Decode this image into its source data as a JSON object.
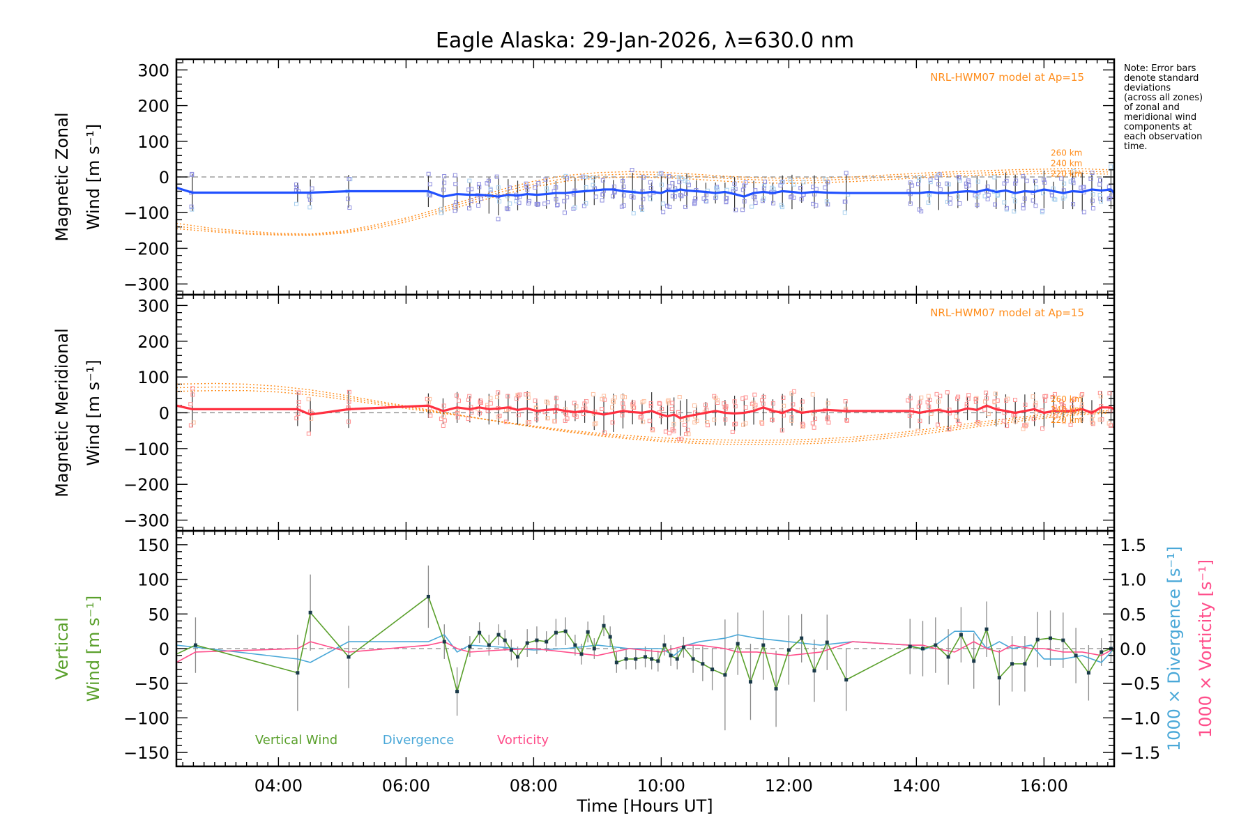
{
  "title": "Eagle Alaska: 29-Jan-2026, λ=630.0 nm",
  "note_lines": [
    "Note: Error bars",
    "denote standard",
    "deviations",
    "(across all zones)",
    "of zonal and",
    "meridional wind",
    "components at",
    "each observation",
    "time."
  ],
  "colors": {
    "zonal": "#2050ff",
    "meridional": "#ff3040",
    "vertical": "#5aa02c",
    "divergence": "#4aa8d8",
    "vorticity": "#ff4d8a",
    "model": "#ff8c1a",
    "zone_zonal": "#9090e0",
    "zone_merid": "#ff9090"
  },
  "chart_data": [
    {
      "id": "zonal",
      "type": "line",
      "ylabel_lines": [
        "Magnetic Zonal",
        "Wind [m s⁻¹]"
      ],
      "ylim": [
        -330,
        330
      ],
      "yticks": [
        300,
        200,
        100,
        0,
        -100,
        -200,
        -300
      ],
      "ytick_labels": [
        "300",
        "200",
        "100",
        "0",
        "−100",
        "−200",
        "−300"
      ],
      "xlim": [
        2.4,
        17.1
      ],
      "model_label": "NRL-HWM07 model at Ap=15",
      "altitude_labels": [
        "260 km",
        "240 km",
        "220 km"
      ],
      "model_curves": {
        "x": [
          2.4,
          3.0,
          3.5,
          4.0,
          4.5,
          5.0,
          5.5,
          6.0,
          6.5,
          7.0,
          7.5,
          8.0,
          8.5,
          9.0,
          9.5,
          10.0,
          10.5,
          11.0,
          11.5,
          12.0,
          12.5,
          13.0,
          13.5,
          14.0,
          14.5,
          15.0,
          15.5,
          16.0,
          16.5,
          17.0
        ],
        "series": [
          {
            "name": "260 km",
            "values": [
              -130,
              -145,
              -152,
              -158,
              -160,
              -152,
              -135,
              -115,
              -90,
              -62,
              -35,
              -12,
              4,
              12,
              15,
              13,
              8,
              2,
              -2,
              -4,
              -3,
              0,
              5,
              10,
              14,
              17,
              20,
              22,
              24,
              20
            ]
          },
          {
            "name": "240 km",
            "values": [
              -138,
              -150,
              -157,
              -161,
              -162,
              -155,
              -140,
              -120,
              -96,
              -68,
              -42,
              -20,
              -4,
              5,
              8,
              6,
              2,
              -4,
              -8,
              -10,
              -9,
              -6,
              -1,
              4,
              8,
              11,
              14,
              16,
              17,
              14
            ]
          },
          {
            "name": "220 km",
            "values": [
              -145,
              -154,
              -160,
              -163,
              -164,
              -158,
              -145,
              -126,
              -102,
              -75,
              -50,
              -28,
              -12,
              -3,
              0,
              -2,
              -6,
              -12,
              -16,
              -18,
              -16,
              -13,
              -8,
              -3,
              2,
              5,
              8,
              9,
              10,
              8
            ]
          }
        ]
      },
      "series": [
        {
          "name": "Zonal Wind",
          "x": [
            2.4,
            2.65,
            4.3,
            4.5,
            5.1,
            6.35,
            6.58,
            6.8,
            7.0,
            7.15,
            7.3,
            7.45,
            7.6,
            7.75,
            7.9,
            8.05,
            8.2,
            8.35,
            8.5,
            8.65,
            8.8,
            8.95,
            9.1,
            9.25,
            9.4,
            9.55,
            9.7,
            9.85,
            10.0,
            10.1,
            10.2,
            10.3,
            10.4,
            10.55,
            10.7,
            10.85,
            11.0,
            11.15,
            11.3,
            11.45,
            11.6,
            11.75,
            11.9,
            12.05,
            12.2,
            12.4,
            12.6,
            12.9,
            13.9,
            14.05,
            14.2,
            14.35,
            14.5,
            14.65,
            14.8,
            14.95,
            15.1,
            15.25,
            15.4,
            15.55,
            15.7,
            15.85,
            16.0,
            16.15,
            16.3,
            16.45,
            16.6,
            16.75,
            16.9,
            17.05,
            17.1
          ],
          "y": [
            -30,
            -44,
            -44,
            -44,
            -40,
            -40,
            -55,
            -48,
            -50,
            -50,
            -52,
            -55,
            -50,
            -52,
            -48,
            -50,
            -48,
            -45,
            -45,
            -42,
            -40,
            -38,
            -35,
            -35,
            -40,
            -42,
            -45,
            -42,
            -45,
            -38,
            -40,
            -35,
            -38,
            -40,
            -42,
            -45,
            -42,
            -48,
            -55,
            -45,
            -42,
            -45,
            -40,
            -42,
            -45,
            -42,
            -44,
            -45,
            -45,
            -45,
            -42,
            -45,
            -45,
            -42,
            -40,
            -42,
            -35,
            -42,
            -38,
            -45,
            -40,
            -42,
            -35,
            -40,
            -45,
            -40,
            -42,
            -35,
            -38,
            -35,
            -45
          ]
        }
      ]
    },
    {
      "id": "meridional",
      "type": "line",
      "ylabel_lines": [
        "Magnetic Meridional",
        "Wind [m s⁻¹]"
      ],
      "ylim": [
        -330,
        330
      ],
      "yticks": [
        300,
        200,
        100,
        0,
        -100,
        -200,
        -300
      ],
      "ytick_labels": [
        "300",
        "200",
        "100",
        "0",
        "−100",
        "−200",
        "−300"
      ],
      "xlim": [
        2.4,
        17.1
      ],
      "model_label": "NRL-HWM07 model at Ap=15",
      "altitude_labels": [
        "260 km",
        "240 km",
        "220 km"
      ],
      "model_curves": {
        "x": [
          2.4,
          3.0,
          3.5,
          4.0,
          4.5,
          5.0,
          5.5,
          6.0,
          6.5,
          7.0,
          7.5,
          8.0,
          8.5,
          9.0,
          9.5,
          10.0,
          10.5,
          11.0,
          11.5,
          12.0,
          12.5,
          13.0,
          13.5,
          14.0,
          14.5,
          15.0,
          15.5,
          16.0,
          16.5,
          17.0
        ],
        "series": [
          {
            "name": "260 km",
            "values": [
              60,
              62,
              62,
              58,
              50,
              38,
              25,
              12,
              0,
              -12,
              -25,
              -37,
              -48,
              -57,
              -64,
              -70,
              -74,
              -76,
              -77,
              -76,
              -73,
              -68,
              -60,
              -50,
              -38,
              -26,
              -15,
              -5,
              2,
              6
            ]
          },
          {
            "name": "240 km",
            "values": [
              70,
              72,
              71,
              66,
              57,
              44,
              30,
              16,
              2,
              -12,
              -26,
              -39,
              -51,
              -61,
              -69,
              -76,
              -80,
              -82,
              -83,
              -82,
              -79,
              -74,
              -66,
              -56,
              -44,
              -32,
              -20,
              -10,
              -2,
              2
            ]
          },
          {
            "name": "220 km",
            "values": [
              80,
              82,
              80,
              74,
              64,
              50,
              34,
              19,
              4,
              -11,
              -26,
              -40,
              -53,
              -64,
              -73,
              -80,
              -85,
              -88,
              -89,
              -88,
              -85,
              -80,
              -72,
              -62,
              -50,
              -38,
              -26,
              -15,
              -6,
              -1
            ]
          }
        ]
      },
      "series": [
        {
          "name": "Meridional Wind",
          "x": [
            2.4,
            2.65,
            4.3,
            4.5,
            5.1,
            6.35,
            6.58,
            6.8,
            7.0,
            7.15,
            7.3,
            7.45,
            7.6,
            7.75,
            7.9,
            8.05,
            8.2,
            8.35,
            8.5,
            8.65,
            8.8,
            8.95,
            9.1,
            9.25,
            9.4,
            9.55,
            9.7,
            9.85,
            10.0,
            10.1,
            10.2,
            10.3,
            10.4,
            10.55,
            10.7,
            10.85,
            11.0,
            11.15,
            11.3,
            11.45,
            11.6,
            11.75,
            11.9,
            12.05,
            12.2,
            12.4,
            12.6,
            12.9,
            13.9,
            14.05,
            14.2,
            14.35,
            14.5,
            14.65,
            14.8,
            14.95,
            15.1,
            15.25,
            15.4,
            15.55,
            15.7,
            15.85,
            16.0,
            16.15,
            16.3,
            16.45,
            16.6,
            16.75,
            16.9,
            17.05,
            17.1
          ],
          "y": [
            20,
            10,
            10,
            -5,
            10,
            20,
            5,
            15,
            10,
            15,
            10,
            12,
            15,
            8,
            12,
            5,
            8,
            10,
            5,
            2,
            5,
            0,
            -5,
            0,
            5,
            2,
            0,
            5,
            -5,
            -10,
            -5,
            -15,
            -10,
            -5,
            0,
            5,
            0,
            -2,
            0,
            5,
            15,
            5,
            0,
            10,
            0,
            5,
            8,
            5,
            5,
            0,
            5,
            8,
            2,
            5,
            12,
            8,
            20,
            10,
            5,
            0,
            5,
            10,
            0,
            5,
            5,
            5,
            10,
            0,
            15,
            15,
            10
          ]
        }
      ]
    },
    {
      "id": "vertical",
      "type": "line",
      "ylabel_lines": [
        "Vertical",
        "Wind [m s⁻¹]"
      ],
      "ylim": [
        -170,
        170
      ],
      "yticks": [
        150,
        100,
        50,
        0,
        -50,
        -100,
        -150
      ],
      "ytick_labels": [
        "150",
        "100",
        "50",
        "0",
        "−50",
        "−100",
        "−150"
      ],
      "y2lim": [
        -1.7,
        1.7
      ],
      "y2ticks": [
        1.5,
        1.0,
        0.5,
        0.0,
        -0.5,
        -1.0,
        -1.5
      ],
      "y2tick_labels": [
        "1.5",
        "1.0",
        "0.5",
        "0.0",
        "−0.5",
        "−1.0",
        "−1.5"
      ],
      "y2label_div": "1000 × Divergence [s⁻¹]",
      "y2label_vort": "1000 × Vorticity [s⁻¹]",
      "xlim": [
        2.4,
        17.1
      ],
      "xticks": [
        4,
        6,
        8,
        10,
        12,
        14,
        16
      ],
      "xtick_labels": [
        "04:00",
        "06:00",
        "08:00",
        "10:00",
        "12:00",
        "14:00",
        "16:00"
      ],
      "xlabel": "Time [Hours UT]",
      "legend": [
        "Vertical Wind",
        "Divergence",
        "Vorticity"
      ],
      "series": [
        {
          "name": "Vertical Wind",
          "axis": "left",
          "x": [
            2.4,
            2.7,
            4.3,
            4.5,
            5.1,
            6.35,
            6.6,
            6.8,
            7.0,
            7.15,
            7.3,
            7.45,
            7.55,
            7.65,
            7.75,
            7.9,
            8.05,
            8.2,
            8.35,
            8.5,
            8.65,
            8.75,
            8.85,
            8.95,
            9.1,
            9.2,
            9.3,
            9.45,
            9.6,
            9.75,
            9.85,
            9.95,
            10.05,
            10.15,
            10.25,
            10.35,
            10.5,
            10.65,
            10.8,
            11.0,
            11.2,
            11.4,
            11.6,
            11.8,
            12.0,
            12.2,
            12.4,
            12.6,
            12.9,
            13.9,
            14.1,
            14.3,
            14.5,
            14.7,
            14.9,
            15.1,
            15.3,
            15.5,
            15.7,
            15.9,
            16.1,
            16.3,
            16.5,
            16.7,
            16.9,
            17.05,
            17.1
          ],
          "y": [
            -8,
            5,
            -35,
            52,
            -12,
            75,
            10,
            -62,
            3,
            23,
            5,
            20,
            12,
            -2,
            -12,
            8,
            12,
            10,
            23,
            25,
            5,
            -8,
            24,
            0,
            33,
            17,
            -20,
            -15,
            -15,
            -12,
            -15,
            -18,
            5,
            -10,
            -15,
            2,
            -15,
            -22,
            -30,
            -38,
            7,
            -48,
            5,
            -58,
            -2,
            15,
            -32,
            9,
            -45,
            3,
            0,
            5,
            -12,
            20,
            -18,
            28,
            -42,
            -22,
            -22,
            13,
            15,
            12,
            -10,
            -35,
            -5,
            0,
            -5
          ],
          "err": [
            0,
            40,
            55,
            55,
            45,
            45,
            25,
            35,
            15,
            15,
            15,
            15,
            15,
            15,
            15,
            20,
            20,
            15,
            20,
            20,
            15,
            15,
            15,
            15,
            15,
            15,
            15,
            15,
            15,
            15,
            15,
            15,
            15,
            15,
            15,
            15,
            20,
            25,
            30,
            80,
            45,
            55,
            50,
            55,
            50,
            35,
            45,
            40,
            45,
            40,
            40,
            40,
            40,
            40,
            40,
            40,
            40,
            40,
            40,
            40,
            40,
            40,
            40,
            40,
            20,
            20,
            0
          ]
        },
        {
          "name": "Divergence",
          "axis": "right",
          "x": [
            2.4,
            2.7,
            4.3,
            4.5,
            5.1,
            6.35,
            6.6,
            6.8,
            7.0,
            7.5,
            8.0,
            8.5,
            9.0,
            9.5,
            10.0,
            10.2,
            10.4,
            10.6,
            11.0,
            11.2,
            11.5,
            12.0,
            12.5,
            13.0,
            13.9,
            14.1,
            14.3,
            14.6,
            14.9,
            15.1,
            15.3,
            15.5,
            15.8,
            16.0,
            16.3,
            16.6,
            16.9,
            17.1
          ],
          "y": [
            0.05,
            0.02,
            -0.15,
            -0.2,
            0.1,
            0.1,
            0.2,
            -0.05,
            0.05,
            0.02,
            -0.02,
            0.0,
            0.05,
            0.0,
            0.0,
            -0.1,
            0.05,
            0.1,
            0.15,
            0.2,
            0.15,
            0.1,
            0.05,
            0.1,
            0.05,
            -0.02,
            0.05,
            0.25,
            0.25,
            0.0,
            0.1,
            0.0,
            0.05,
            -0.15,
            -0.15,
            -0.1,
            -0.2,
            0.0
          ]
        },
        {
          "name": "Vorticity",
          "axis": "right",
          "x": [
            2.4,
            2.7,
            4.3,
            4.5,
            5.1,
            6.35,
            6.6,
            6.8,
            7.0,
            7.5,
            8.0,
            8.5,
            9.0,
            9.5,
            10.0,
            10.2,
            10.4,
            10.6,
            11.0,
            11.2,
            11.5,
            12.0,
            12.5,
            13.0,
            13.9,
            14.1,
            14.3,
            14.6,
            14.9,
            15.1,
            15.3,
            15.5,
            15.8,
            16.0,
            16.3,
            16.6,
            16.9,
            17.1
          ],
          "y": [
            -0.2,
            -0.05,
            0.0,
            0.1,
            -0.05,
            0.05,
            0.1,
            0.0,
            -0.05,
            -0.02,
            0.0,
            -0.05,
            -0.1,
            0.0,
            -0.05,
            0.0,
            0.05,
            0.05,
            0.0,
            -0.05,
            -0.05,
            -0.1,
            -0.05,
            0.1,
            0.05,
            0.05,
            0.0,
            -0.05,
            0.1,
            0.0,
            -0.05,
            0.05,
            0.0,
            0.0,
            -0.05,
            -0.05,
            -0.1,
            0.0
          ]
        }
      ]
    }
  ]
}
